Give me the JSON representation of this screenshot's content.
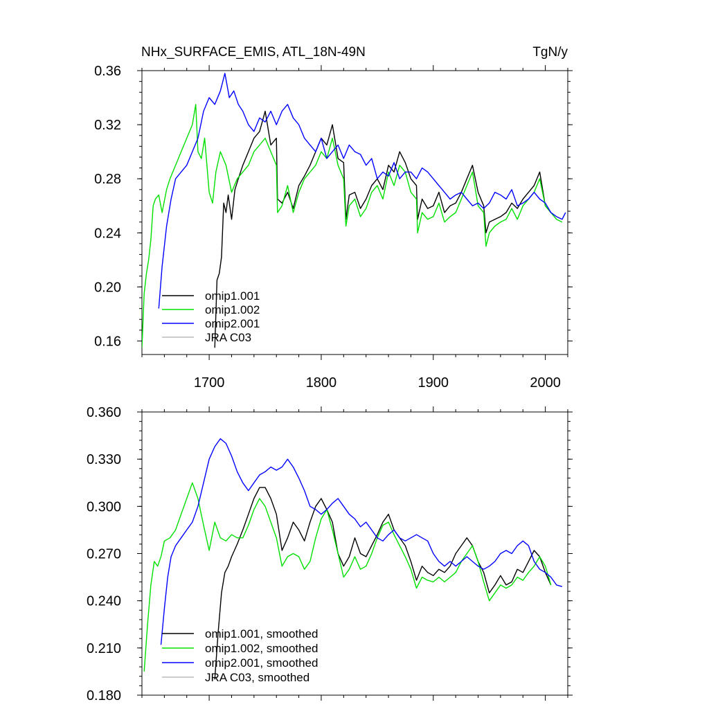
{
  "chart_data": [
    {
      "type": "line",
      "title": "NHx_SURFACE_EMIS, ATL_18N-49N",
      "units": "TgN/y",
      "xlim": [
        1640,
        2020
      ],
      "ylim": [
        0.15,
        0.36
      ],
      "xticks": [
        1700,
        1800,
        1900,
        2000
      ],
      "xtick_labels": [
        "1700",
        "1800",
        "1900",
        "2000"
      ],
      "yticks": [
        0.16,
        0.2,
        0.24,
        0.28,
        0.32,
        0.36
      ],
      "ytick_labels": [
        "0.16",
        "0.20",
        "0.24",
        "0.28",
        "0.32",
        "0.36"
      ],
      "legend_position": "bottom-left",
      "series": [
        {
          "name": "omip1.001",
          "color": "#000000",
          "x": [
            1705,
            1707,
            1709,
            1711,
            1713,
            1715,
            1717,
            1720,
            1723,
            1726,
            1730,
            1735,
            1740,
            1745,
            1750,
            1755,
            1760,
            1761,
            1765,
            1770,
            1775,
            1780,
            1785,
            1790,
            1795,
            1800,
            1805,
            1810,
            1815,
            1820,
            1822,
            1825,
            1830,
            1835,
            1840,
            1845,
            1850,
            1855,
            1860,
            1865,
            1870,
            1875,
            1880,
            1885,
            1886,
            1890,
            1895,
            1900,
            1905,
            1910,
            1915,
            1920,
            1925,
            1930,
            1935,
            1940,
            1945,
            1947,
            1950,
            1955,
            1960,
            1965,
            1970,
            1975,
            1980,
            1985,
            1990,
            1995,
            2000,
            2005
          ],
          "y": [
            0.155,
            0.205,
            0.21,
            0.222,
            0.262,
            0.255,
            0.268,
            0.25,
            0.272,
            0.28,
            0.29,
            0.3,
            0.31,
            0.315,
            0.33,
            0.305,
            0.31,
            0.265,
            0.262,
            0.27,
            0.258,
            0.275,
            0.282,
            0.29,
            0.3,
            0.31,
            0.305,
            0.32,
            0.295,
            0.292,
            0.25,
            0.268,
            0.27,
            0.258,
            0.265,
            0.275,
            0.28,
            0.272,
            0.29,
            0.285,
            0.3,
            0.292,
            0.28,
            0.275,
            0.25,
            0.265,
            0.258,
            0.26,
            0.27,
            0.255,
            0.26,
            0.262,
            0.27,
            0.28,
            0.29,
            0.27,
            0.26,
            0.24,
            0.248,
            0.25,
            0.252,
            0.255,
            0.262,
            0.258,
            0.265,
            0.27,
            0.275,
            0.285,
            0.26,
            0.255
          ]
        },
        {
          "name": "omip1.002",
          "color": "#00e000",
          "x": [
            1640,
            1642,
            1644,
            1646,
            1648,
            1650,
            1652,
            1655,
            1658,
            1662,
            1665,
            1670,
            1675,
            1680,
            1685,
            1688,
            1690,
            1693,
            1696,
            1700,
            1703,
            1706,
            1710,
            1715,
            1720,
            1725,
            1730,
            1735,
            1740,
            1745,
            1750,
            1755,
            1760,
            1761,
            1765,
            1770,
            1775,
            1780,
            1785,
            1790,
            1795,
            1800,
            1805,
            1810,
            1815,
            1820,
            1822,
            1825,
            1830,
            1835,
            1840,
            1845,
            1850,
            1855,
            1860,
            1865,
            1870,
            1875,
            1880,
            1885,
            1886,
            1890,
            1895,
            1900,
            1905,
            1910,
            1915,
            1920,
            1925,
            1930,
            1935,
            1940,
            1945,
            1947,
            1950,
            1955,
            1960,
            1965,
            1970,
            1975,
            1980,
            1985,
            1990,
            1995,
            2000,
            2005,
            2010,
            2015
          ],
          "y": [
            0.155,
            0.195,
            0.21,
            0.22,
            0.235,
            0.26,
            0.265,
            0.268,
            0.255,
            0.272,
            0.28,
            0.29,
            0.3,
            0.31,
            0.32,
            0.335,
            0.3,
            0.295,
            0.31,
            0.27,
            0.262,
            0.285,
            0.3,
            0.29,
            0.27,
            0.28,
            0.285,
            0.29,
            0.3,
            0.305,
            0.31,
            0.3,
            0.29,
            0.255,
            0.26,
            0.275,
            0.255,
            0.27,
            0.28,
            0.285,
            0.29,
            0.3,
            0.295,
            0.31,
            0.29,
            0.28,
            0.245,
            0.26,
            0.265,
            0.252,
            0.258,
            0.27,
            0.275,
            0.265,
            0.285,
            0.275,
            0.29,
            0.285,
            0.27,
            0.265,
            0.24,
            0.255,
            0.25,
            0.252,
            0.262,
            0.248,
            0.252,
            0.255,
            0.265,
            0.275,
            0.285,
            0.26,
            0.255,
            0.23,
            0.24,
            0.245,
            0.248,
            0.25,
            0.258,
            0.25,
            0.26,
            0.265,
            0.27,
            0.28,
            0.26,
            0.255,
            0.25,
            0.248
          ]
        },
        {
          "name": "omip2.001",
          "color": "#0000ff",
          "x": [
            1655,
            1658,
            1662,
            1666,
            1670,
            1675,
            1680,
            1685,
            1690,
            1695,
            1700,
            1705,
            1710,
            1714,
            1718,
            1722,
            1726,
            1730,
            1735,
            1740,
            1745,
            1750,
            1755,
            1760,
            1765,
            1770,
            1775,
            1780,
            1785,
            1790,
            1795,
            1800,
            1805,
            1810,
            1815,
            1820,
            1825,
            1830,
            1835,
            1840,
            1845,
            1850,
            1855,
            1860,
            1865,
            1870,
            1875,
            1880,
            1885,
            1890,
            1895,
            1900,
            1905,
            1910,
            1915,
            1920,
            1925,
            1930,
            1935,
            1940,
            1945,
            1950,
            1955,
            1960,
            1965,
            1970,
            1975,
            1980,
            1985,
            1990,
            1995,
            2000,
            2005,
            2010,
            2015,
            2018
          ],
          "y": [
            0.184,
            0.215,
            0.245,
            0.265,
            0.28,
            0.285,
            0.29,
            0.3,
            0.31,
            0.33,
            0.34,
            0.335,
            0.345,
            0.358,
            0.34,
            0.345,
            0.335,
            0.33,
            0.32,
            0.315,
            0.325,
            0.322,
            0.33,
            0.32,
            0.33,
            0.335,
            0.325,
            0.32,
            0.31,
            0.305,
            0.3,
            0.31,
            0.295,
            0.3,
            0.305,
            0.295,
            0.305,
            0.3,
            0.298,
            0.29,
            0.295,
            0.28,
            0.285,
            0.282,
            0.292,
            0.28,
            0.285,
            0.285,
            0.28,
            0.288,
            0.285,
            0.28,
            0.275,
            0.27,
            0.265,
            0.268,
            0.27,
            0.265,
            0.26,
            0.262,
            0.258,
            0.262,
            0.27,
            0.268,
            0.265,
            0.272,
            0.26,
            0.262,
            0.265,
            0.27,
            0.265,
            0.262,
            0.255,
            0.252,
            0.25,
            0.255
          ]
        },
        {
          "name": "JRA C03",
          "color": "#bbbbbb",
          "x": [],
          "y": []
        }
      ]
    },
    {
      "type": "line",
      "title": "",
      "xlim": [
        1640,
        2020
      ],
      "ylim": [
        0.18,
        0.36
      ],
      "yticks": [
        0.18,
        0.21,
        0.24,
        0.27,
        0.3,
        0.33,
        0.36
      ],
      "ytick_labels": [
        "0.180",
        "0.210",
        "0.240",
        "0.270",
        "0.300",
        "0.330",
        "0.360"
      ],
      "legend_position": "bottom-left",
      "series": [
        {
          "name": "omip1.001, smoothed",
          "color": "#000000",
          "x": [
            1705,
            1708,
            1711,
            1714,
            1717,
            1720,
            1725,
            1730,
            1735,
            1740,
            1745,
            1750,
            1755,
            1760,
            1765,
            1770,
            1775,
            1780,
            1785,
            1790,
            1795,
            1800,
            1805,
            1810,
            1815,
            1820,
            1825,
            1830,
            1835,
            1840,
            1845,
            1850,
            1855,
            1860,
            1865,
            1870,
            1875,
            1880,
            1885,
            1890,
            1895,
            1900,
            1905,
            1910,
            1915,
            1920,
            1925,
            1930,
            1935,
            1940,
            1945,
            1950,
            1955,
            1960,
            1965,
            1970,
            1975,
            1980,
            1985,
            1990,
            1995,
            2000,
            2005
          ],
          "y": [
            0.19,
            0.22,
            0.245,
            0.258,
            0.262,
            0.268,
            0.276,
            0.285,
            0.295,
            0.305,
            0.312,
            0.312,
            0.305,
            0.295,
            0.272,
            0.28,
            0.29,
            0.285,
            0.278,
            0.29,
            0.3,
            0.305,
            0.298,
            0.29,
            0.27,
            0.262,
            0.268,
            0.28,
            0.27,
            0.268,
            0.275,
            0.282,
            0.29,
            0.295,
            0.285,
            0.28,
            0.275,
            0.265,
            0.253,
            0.262,
            0.258,
            0.256,
            0.26,
            0.258,
            0.262,
            0.27,
            0.275,
            0.28,
            0.275,
            0.265,
            0.258,
            0.245,
            0.25,
            0.256,
            0.25,
            0.252,
            0.26,
            0.258,
            0.265,
            0.272,
            0.268,
            0.258,
            0.25
          ]
        },
        {
          "name": "omip1.002, smoothed",
          "color": "#00e000",
          "x": [
            1642,
            1645,
            1648,
            1651,
            1654,
            1657,
            1660,
            1665,
            1670,
            1675,
            1680,
            1685,
            1690,
            1695,
            1700,
            1705,
            1710,
            1715,
            1720,
            1725,
            1730,
            1735,
            1740,
            1745,
            1750,
            1755,
            1760,
            1765,
            1770,
            1775,
            1780,
            1785,
            1790,
            1795,
            1800,
            1805,
            1810,
            1815,
            1820,
            1825,
            1830,
            1835,
            1840,
            1845,
            1850,
            1855,
            1860,
            1865,
            1870,
            1875,
            1880,
            1885,
            1890,
            1895,
            1900,
            1905,
            1910,
            1915,
            1920,
            1925,
            1930,
            1935,
            1940,
            1945,
            1950,
            1955,
            1960,
            1965,
            1970,
            1975,
            1980,
            1985,
            1990,
            1995,
            2000,
            2005
          ],
          "y": [
            0.195,
            0.225,
            0.25,
            0.265,
            0.262,
            0.268,
            0.278,
            0.28,
            0.285,
            0.295,
            0.305,
            0.315,
            0.305,
            0.288,
            0.272,
            0.29,
            0.28,
            0.278,
            0.282,
            0.28,
            0.28,
            0.288,
            0.298,
            0.305,
            0.3,
            0.29,
            0.28,
            0.262,
            0.268,
            0.27,
            0.268,
            0.26,
            0.265,
            0.28,
            0.292,
            0.298,
            0.285,
            0.27,
            0.255,
            0.26,
            0.268,
            0.26,
            0.262,
            0.27,
            0.28,
            0.288,
            0.29,
            0.282,
            0.275,
            0.268,
            0.26,
            0.248,
            0.255,
            0.253,
            0.252,
            0.255,
            0.252,
            0.255,
            0.258,
            0.265,
            0.27,
            0.275,
            0.265,
            0.252,
            0.24,
            0.245,
            0.25,
            0.248,
            0.25,
            0.255,
            0.253,
            0.258,
            0.262,
            0.268,
            0.262,
            0.25
          ]
        },
        {
          "name": "omip2.001, smoothed",
          "color": "#0000ff",
          "x": [
            1657,
            1660,
            1663,
            1666,
            1670,
            1675,
            1680,
            1685,
            1690,
            1695,
            1700,
            1705,
            1710,
            1715,
            1720,
            1725,
            1730,
            1735,
            1740,
            1745,
            1750,
            1755,
            1760,
            1765,
            1770,
            1775,
            1780,
            1785,
            1790,
            1795,
            1800,
            1805,
            1810,
            1815,
            1820,
            1825,
            1830,
            1835,
            1840,
            1845,
            1850,
            1855,
            1860,
            1865,
            1870,
            1875,
            1880,
            1885,
            1890,
            1895,
            1900,
            1905,
            1910,
            1915,
            1920,
            1925,
            1930,
            1935,
            1940,
            1945,
            1950,
            1955,
            1960,
            1965,
            1970,
            1975,
            1980,
            1985,
            1990,
            1995,
            2000,
            2005,
            2010,
            2015
          ],
          "y": [
            0.212,
            0.235,
            0.255,
            0.268,
            0.275,
            0.28,
            0.285,
            0.29,
            0.3,
            0.315,
            0.33,
            0.338,
            0.343,
            0.34,
            0.332,
            0.322,
            0.315,
            0.31,
            0.315,
            0.32,
            0.322,
            0.325,
            0.323,
            0.325,
            0.33,
            0.325,
            0.318,
            0.31,
            0.3,
            0.298,
            0.295,
            0.298,
            0.302,
            0.305,
            0.3,
            0.295,
            0.292,
            0.287,
            0.29,
            0.285,
            0.28,
            0.278,
            0.282,
            0.285,
            0.28,
            0.278,
            0.28,
            0.282,
            0.28,
            0.278,
            0.27,
            0.265,
            0.262,
            0.265,
            0.262,
            0.265,
            0.268,
            0.265,
            0.262,
            0.26,
            0.262,
            0.265,
            0.27,
            0.272,
            0.27,
            0.275,
            0.278,
            0.275,
            0.265,
            0.26,
            0.258,
            0.255,
            0.25,
            0.249
          ]
        },
        {
          "name": "JRA C03, smoothed",
          "color": "#bbbbbb",
          "x": [],
          "y": []
        }
      ]
    }
  ]
}
